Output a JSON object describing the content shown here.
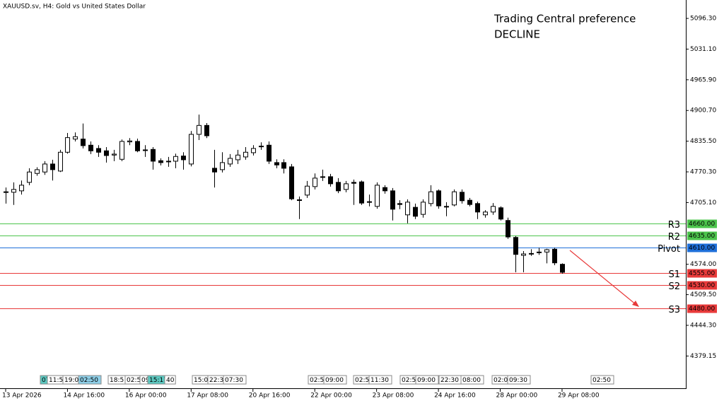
{
  "chart_data": {
    "type": "candlestick",
    "title": "XAUUSD.sv, H4:  Gold vs United States Dollar",
    "annotations": [
      "Trading Central preference",
      "DECLINE"
    ],
    "annotation_color": "#f03c3c",
    "up_color": "#ffffff",
    "down_color": "#000000",
    "wick_color": "#000000",
    "categories": [
      "13 Apr 2026",
      null,
      null,
      null,
      null,
      null,
      null,
      null,
      "14 Apr 16:00",
      null,
      null,
      null,
      null,
      null,
      null,
      null,
      "16 Apr 00:00",
      null,
      null,
      null,
      null,
      null,
      null,
      null,
      "17 Apr 08:00",
      null,
      null,
      null,
      null,
      null,
      null,
      null,
      "20 Apr 16:00",
      null,
      null,
      null,
      null,
      null,
      null,
      null,
      "22 Apr 00:00",
      null,
      null,
      null,
      null,
      null,
      null,
      null,
      "23 Apr 08:00",
      null,
      null,
      null,
      null,
      null,
      null,
      null,
      "24 Apr 16:00",
      null,
      null,
      null,
      null,
      null,
      null,
      null,
      "28 Apr 00:00",
      null,
      null,
      null,
      null,
      null,
      null,
      null,
      "29 Apr 08:00"
    ],
    "open": [
      4727,
      4727,
      4730,
      4748,
      4767,
      4770,
      4787,
      4772,
      4812,
      4840,
      4840,
      4827,
      4820,
      4815,
      4806,
      4797,
      4834,
      4835,
      4817,
      4818,
      4794,
      4793,
      4793,
      4804,
      4787,
      4850,
      4869,
      4778,
      4775,
      4787,
      4796,
      4802,
      4811,
      4824,
      4827,
      4790,
      4790,
      4781,
      4710,
      4721,
      4739,
      4760,
      4760,
      4748,
      4733,
      4748,
      4749,
      4707,
      4697,
      4737,
      4730,
      4703,
      4679,
      4695,
      4680,
      4703,
      4730,
      4697,
      4700,
      4727,
      4710,
      4703,
      4679,
      4685,
      4694,
      4667,
      4631,
      4593,
      4597,
      4600,
      4600,
      4606,
      4574
    ],
    "high": [
      4737,
      4748,
      4752,
      4778,
      4780,
      4793,
      4796,
      4817,
      4853,
      4854,
      4873,
      4835,
      4827,
      4823,
      4817,
      4839,
      4842,
      4841,
      4827,
      4823,
      4799,
      4802,
      4809,
      4812,
      4857,
      4892,
      4874,
      4817,
      4812,
      4808,
      4817,
      4823,
      4827,
      4833,
      4835,
      4797,
      4797,
      4787,
      4718,
      4751,
      4767,
      4775,
      4766,
      4757,
      4751,
      4754,
      4752,
      4722,
      4748,
      4742,
      4736,
      4710,
      4712,
      4703,
      4712,
      4742,
      4733,
      4706,
      4733,
      4733,
      4715,
      4707,
      4689,
      4704,
      4697,
      4673,
      4634,
      4602,
      4606,
      4609,
      4607,
      4609,
      4576
    ],
    "low": [
      4703,
      4700,
      4722,
      4742,
      4762,
      4764,
      4752,
      4770,
      4809,
      4835,
      4820,
      4808,
      4802,
      4790,
      4793,
      4793,
      4827,
      4812,
      4802,
      4775,
      4784,
      4781,
      4778,
      4775,
      4782,
      4838,
      4842,
      4737,
      4769,
      4781,
      4787,
      4796,
      4805,
      4817,
      4787,
      4778,
      4767,
      4710,
      4670,
      4715,
      4733,
      4751,
      4739,
      4725,
      4727,
      4700,
      4700,
      4697,
      4692,
      4724,
      4667,
      4691,
      4661,
      4670,
      4673,
      4697,
      4692,
      4676,
      4697,
      4703,
      4697,
      4670,
      4673,
      4679,
      4667,
      4628,
      4557,
      4557,
      4592,
      4594,
      4576,
      4572,
      4554
    ],
    "close": [
      4728,
      4733,
      4742,
      4770,
      4775,
      4787,
      4775,
      4812,
      4843,
      4845,
      4826,
      4815,
      4812,
      4805,
      4808,
      4835,
      4836,
      4815,
      4816,
      4793,
      4790,
      4792,
      4803,
      4796,
      4850,
      4869,
      4847,
      4770,
      4790,
      4799,
      4806,
      4812,
      4820,
      4825,
      4793,
      4785,
      4778,
      4713,
      4711,
      4740,
      4757,
      4759,
      4745,
      4730,
      4745,
      4746,
      4704,
      4706,
      4742,
      4730,
      4691,
      4701,
      4706,
      4676,
      4706,
      4728,
      4698,
      4696,
      4728,
      4709,
      4701,
      4685,
      4685,
      4697,
      4670,
      4632,
      4595,
      4596,
      4597,
      4600,
      4605,
      4577,
      4557
    ],
    "ylim": [
      4309.1,
      5135.4
    ],
    "yticks": [
      {
        "value": 5096.3,
        "label": "5096.30"
      },
      {
        "value": 5031.1,
        "label": "5031.10"
      },
      {
        "value": 4965.9,
        "label": "4965.90"
      },
      {
        "value": 4900.7,
        "label": "4900.70"
      },
      {
        "value": 4835.5,
        "label": "4835.50"
      },
      {
        "value": 4770.3,
        "label": "4770.30"
      },
      {
        "value": 4705.1,
        "label": "4705.10"
      },
      {
        "value": 4574,
        "label": "4574.00"
      },
      {
        "value": 4509.5,
        "label": "4509.50"
      },
      {
        "value": 4444.3,
        "label": "4444.30"
      },
      {
        "value": 4379.15,
        "label": "4379.15"
      }
    ],
    "levels": [
      {
        "label": "R3",
        "value": 4660,
        "value_label": "4660.00",
        "color": "#4cc44c"
      },
      {
        "label": "R2",
        "value": 4635,
        "value_label": "4635.00",
        "color": "#4cc44c"
      },
      {
        "label": "Pivot",
        "value": 4610,
        "value_label": "4610.00",
        "color": "#1e6fd9"
      },
      {
        "label": "S1",
        "value": 4555,
        "value_label": "4555.00",
        "color": "#e83a3a"
      },
      {
        "label": "S2",
        "value": 4530,
        "value_label": "4530.00",
        "color": "#e83a3a"
      },
      {
        "label": "S3",
        "value": 4480,
        "value_label": "4480.00",
        "color": "#e83a3a"
      }
    ],
    "events": [
      "07",
      "11:5",
      "19:0",
      "02:50",
      "18:5",
      "02:5",
      "09",
      "15:17",
      "40",
      "15:0",
      "22:3",
      "07:30",
      "02:5",
      "09:00",
      "02:5",
      "11:30",
      "02:5",
      "09:00",
      "22:30",
      "08:00",
      "02:0",
      "09:30",
      "02:50"
    ]
  }
}
